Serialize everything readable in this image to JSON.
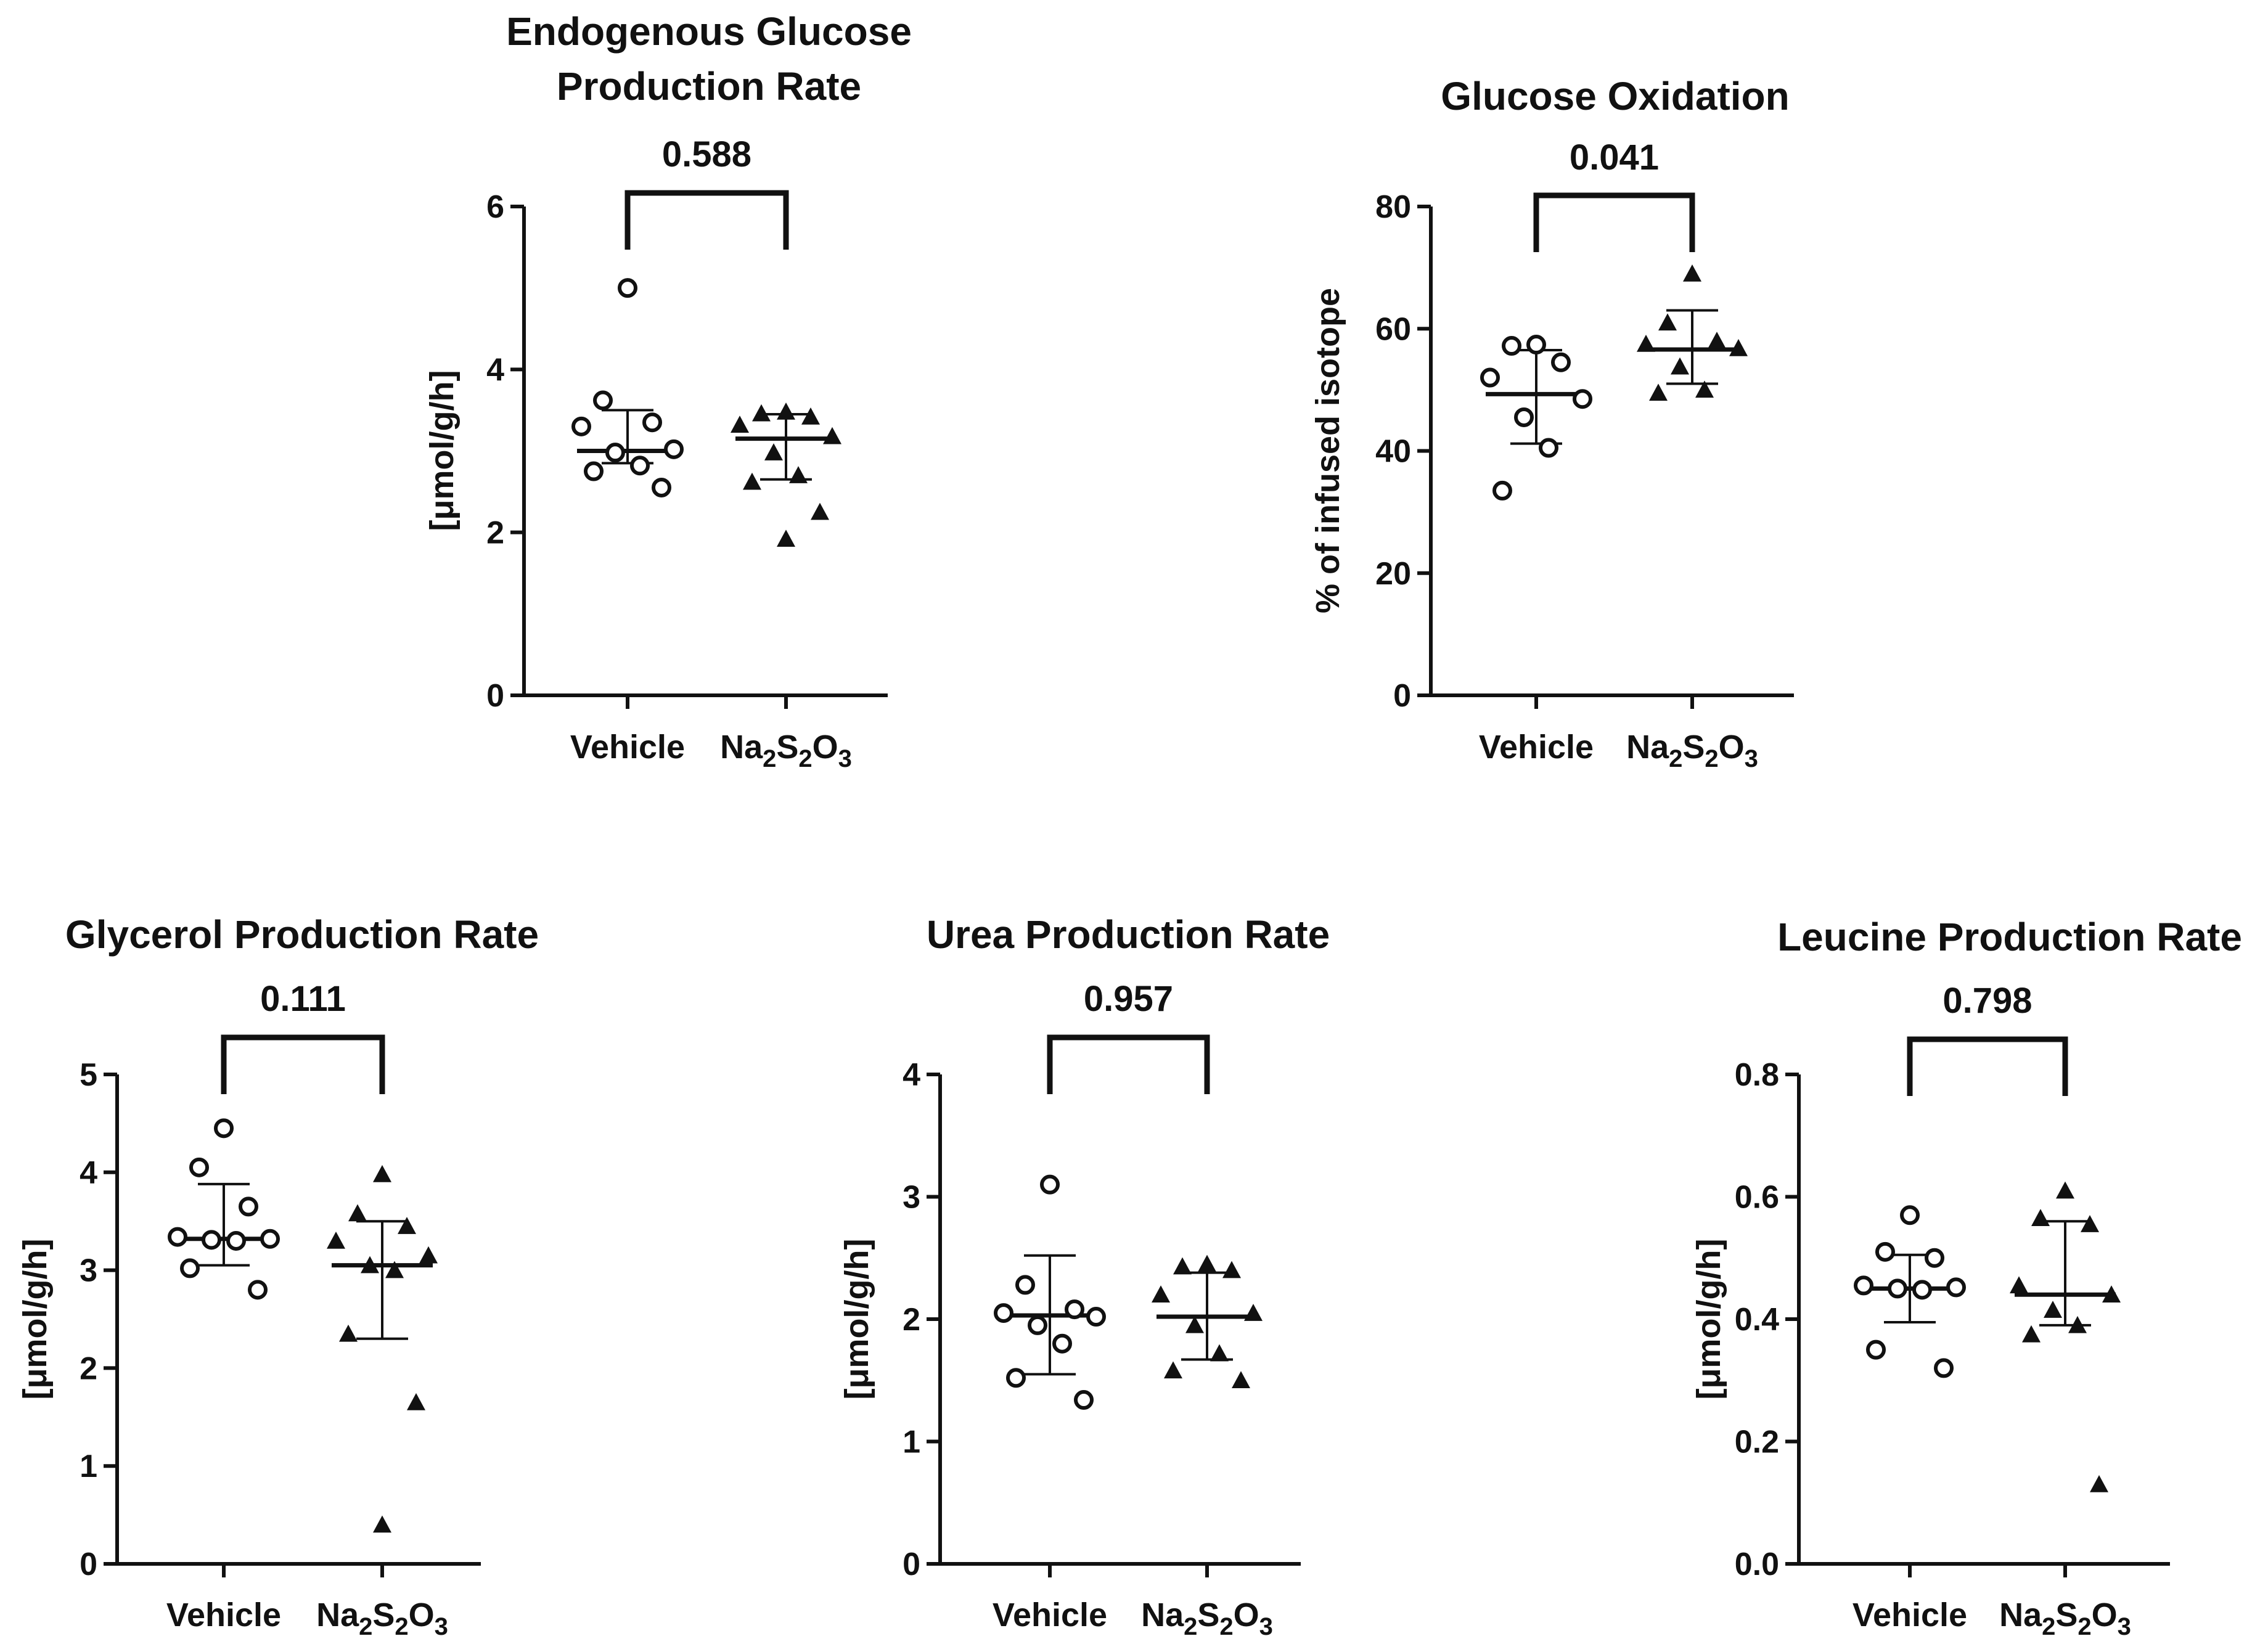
{
  "chart_data": [
    {
      "type": "scatter",
      "title": [
        "Endogenous Glucose",
        "Production Rate"
      ],
      "ylabel": "[μmol/g/h]",
      "categories": [
        "Vehicle",
        "Na2S2O3"
      ],
      "ylim": [
        0,
        6
      ],
      "yticks": [
        0,
        2,
        4,
        6
      ],
      "ytick_labels": [
        "0",
        "2",
        "4",
        "6"
      ],
      "p_value": "0.588",
      "series": [
        {
          "name": "Vehicle",
          "marker": "open-circle",
          "mean": 3.0,
          "sd_low": 2.85,
          "sd_high": 3.5,
          "points": [
            5.0,
            3.62,
            3.35,
            3.3,
            3.02,
            2.98,
            2.82,
            2.75,
            2.55
          ]
        },
        {
          "name": "Na2S2O3",
          "marker": "filled-triangle",
          "mean": 3.15,
          "sd_low": 2.65,
          "sd_high": 3.45,
          "points": [
            3.48,
            3.46,
            3.42,
            3.32,
            3.18,
            2.98,
            2.7,
            2.62,
            2.25,
            1.92
          ]
        }
      ]
    },
    {
      "type": "scatter",
      "title": [
        "Glucose Oxidation"
      ],
      "ylabel": "% of infused isotope",
      "categories": [
        "Vehicle",
        "Na2S2O3"
      ],
      "ylim": [
        0,
        80
      ],
      "yticks": [
        0,
        20,
        40,
        60,
        80
      ],
      "ytick_labels": [
        "0",
        "20",
        "40",
        "60",
        "80"
      ],
      "p_value": "0.041",
      "series": [
        {
          "name": "Vehicle",
          "marker": "open-circle",
          "mean": 49.3,
          "sd_low": 41.2,
          "sd_high": 56.5,
          "points": [
            57.4,
            57.2,
            54.5,
            52.0,
            48.5,
            45.5,
            40.5,
            33.5
          ]
        },
        {
          "name": "Na2S2O3",
          "marker": "filled-triangle",
          "mean": 56.6,
          "sd_low": 51.0,
          "sd_high": 63.0,
          "points": [
            69.0,
            61.0,
            58.0,
            57.5,
            56.8,
            53.8,
            50.0,
            49.5
          ]
        }
      ]
    },
    {
      "type": "scatter",
      "title": [
        "Glycerol Production Rate"
      ],
      "ylabel": "[μmol/g/h]",
      "categories": [
        "Vehicle",
        "Na2S2O3"
      ],
      "ylim": [
        0,
        5
      ],
      "yticks": [
        0,
        1,
        2,
        3,
        4,
        5
      ],
      "ytick_labels": [
        "0",
        "1",
        "2",
        "3",
        "4",
        "5"
      ],
      "p_value": "0.111",
      "series": [
        {
          "name": "Vehicle",
          "marker": "open-circle",
          "mean": 3.32,
          "sd_low": 3.05,
          "sd_high": 3.88,
          "points": [
            4.45,
            4.05,
            3.65,
            3.34,
            3.32,
            3.31,
            3.3,
            3.02,
            2.8
          ]
        },
        {
          "name": "Na2S2O3",
          "marker": "filled-triangle",
          "mean": 3.05,
          "sd_low": 2.3,
          "sd_high": 3.5,
          "points": [
            3.98,
            3.58,
            3.45,
            3.3,
            3.15,
            3.05,
            3.0,
            2.35,
            1.65,
            0.4
          ]
        }
      ]
    },
    {
      "type": "scatter",
      "title": [
        "Urea Production Rate"
      ],
      "ylabel": "[μmol/g/h]",
      "categories": [
        "Vehicle",
        "Na2S2O3"
      ],
      "ylim": [
        0,
        4
      ],
      "yticks": [
        0,
        1,
        2,
        3,
        4
      ],
      "ytick_labels": [
        "0",
        "1",
        "2",
        "3",
        "4"
      ],
      "p_value": "0.957",
      "series": [
        {
          "name": "Vehicle",
          "marker": "open-circle",
          "mean": 2.03,
          "sd_low": 1.55,
          "sd_high": 2.52,
          "points": [
            3.1,
            2.28,
            2.08,
            2.05,
            2.02,
            1.95,
            1.8,
            1.52,
            1.34
          ]
        },
        {
          "name": "Na2S2O3",
          "marker": "filled-triangle",
          "mean": 2.02,
          "sd_low": 1.67,
          "sd_high": 2.38,
          "points": [
            2.45,
            2.43,
            2.4,
            2.2,
            2.05,
            1.95,
            1.72,
            1.58,
            1.5
          ]
        }
      ]
    },
    {
      "type": "scatter",
      "title": [
        "Leucine Production Rate"
      ],
      "ylabel": "[μmol/g/h]",
      "categories": [
        "Vehicle",
        "Na2S2O3"
      ],
      "ylim": [
        0,
        0.8
      ],
      "yticks": [
        0,
        0.2,
        0.4,
        0.6,
        0.8
      ],
      "ytick_labels": [
        "0.0",
        "0.2",
        "0.4",
        "0.6",
        "0.8"
      ],
      "p_value": "0.798",
      "series": [
        {
          "name": "Vehicle",
          "marker": "open-circle",
          "mean": 0.45,
          "sd_low": 0.395,
          "sd_high": 0.505,
          "points": [
            0.57,
            0.51,
            0.5,
            0.455,
            0.452,
            0.45,
            0.448,
            0.35,
            0.32
          ]
        },
        {
          "name": "Na2S2O3",
          "marker": "filled-triangle",
          "mean": 0.44,
          "sd_low": 0.39,
          "sd_high": 0.56,
          "points": [
            0.61,
            0.565,
            0.555,
            0.455,
            0.44,
            0.415,
            0.39,
            0.375,
            0.13
          ]
        }
      ]
    }
  ]
}
